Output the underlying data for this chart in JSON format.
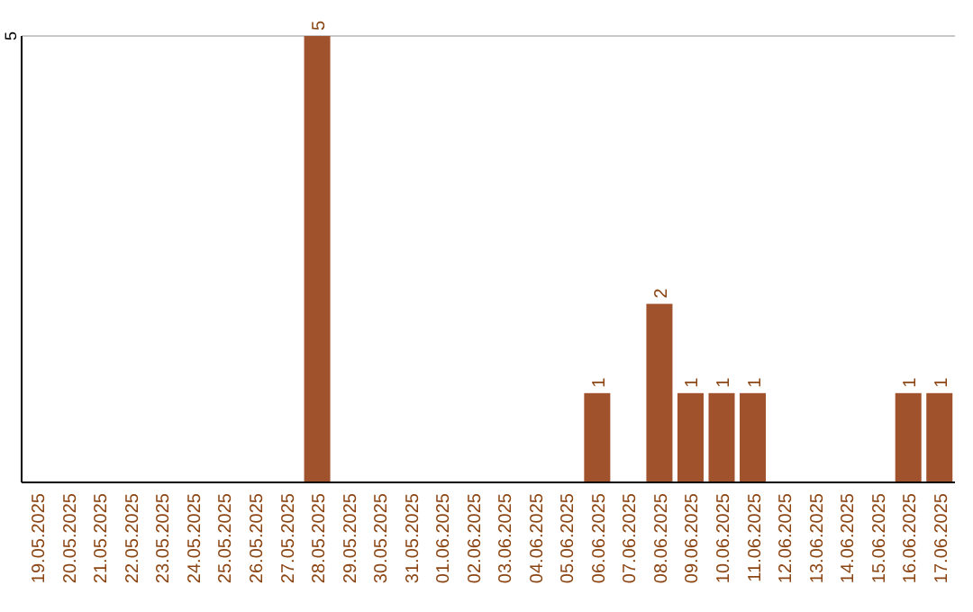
{
  "chart_data": {
    "type": "bar",
    "categories": [
      "19.05.2025",
      "20.05.2025",
      "21.05.2025",
      "22.05.2025",
      "23.05.2025",
      "24.05.2025",
      "25.05.2025",
      "26.05.2025",
      "27.05.2025",
      "28.05.2025",
      "29.05.2025",
      "30.05.2025",
      "31.05.2025",
      "01.06.2025",
      "02.06.2025",
      "03.06.2025",
      "04.06.2025",
      "05.06.2025",
      "06.06.2025",
      "07.06.2025",
      "08.06.2025",
      "09.06.2025",
      "10.06.2025",
      "11.06.2025",
      "12.06.2025",
      "13.06.2025",
      "14.06.2025",
      "15.06.2025",
      "16.06.2025",
      "17.06.2025"
    ],
    "values": [
      0,
      0,
      0,
      0,
      0,
      0,
      0,
      0,
      0,
      5,
      0,
      0,
      0,
      0,
      0,
      0,
      0,
      0,
      1,
      0,
      2,
      1,
      1,
      1,
      0,
      0,
      0,
      0,
      1,
      1
    ],
    "value_labels": [
      null,
      null,
      null,
      null,
      null,
      null,
      null,
      null,
      null,
      "5",
      null,
      null,
      null,
      null,
      null,
      null,
      null,
      null,
      "1",
      null,
      "2",
      "1",
      "1",
      "1",
      null,
      null,
      null,
      null,
      "1",
      "1"
    ],
    "color": "#a0522d",
    "ylim": [
      0,
      5
    ],
    "yticks": [
      5
    ],
    "ref_lines": [
      {
        "axis": "y",
        "value": 5,
        "color": "#c8c8c8"
      }
    ]
  }
}
